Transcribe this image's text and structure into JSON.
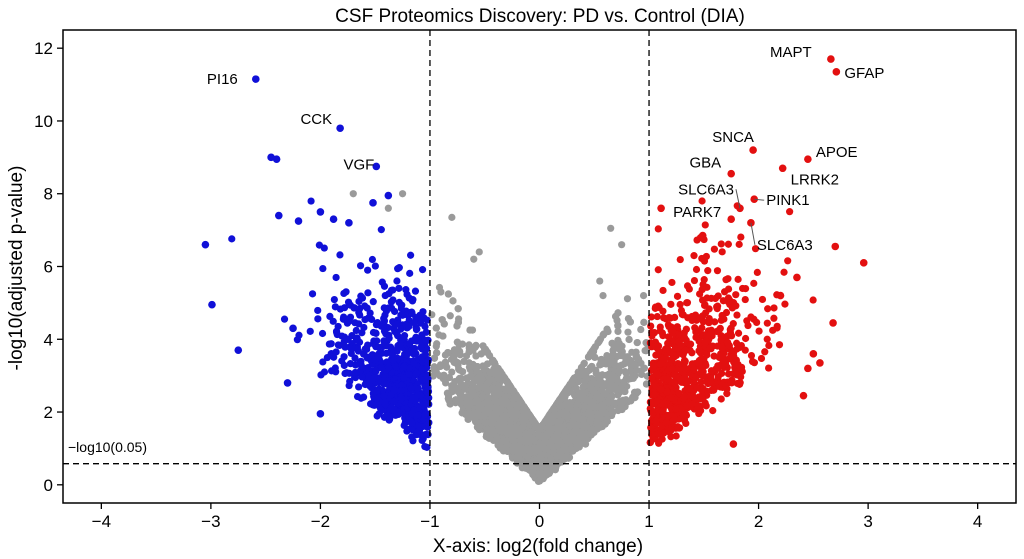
{
  "chart_data": {
    "type": "scatter",
    "title": "CSF Proteomics Discovery: PD vs. Control (DIA)",
    "xlabel": "X-axis: log2(fold change)",
    "ylabel": "-log10(adjusted p-value)",
    "xlim": [
      -4.35,
      4.35
    ],
    "ylim": [
      -0.5,
      12.5
    ],
    "xticks": [
      -4,
      -3,
      -2,
      -1,
      0,
      1,
      2,
      3,
      4
    ],
    "yticks": [
      0,
      2,
      4,
      6,
      8,
      10,
      12
    ],
    "fc_threshold": 1,
    "p_threshold_y": 0.58,
    "threshold_label": "−log10(0.05)",
    "grid": false,
    "colors": {
      "down": "#1010d8",
      "up": "#e31010",
      "ns": "#9a9a9a"
    },
    "labeled_points": [
      {
        "label": "MAPT",
        "x": 2.66,
        "y": 11.7
      },
      {
        "label": "GFAP",
        "x": 2.71,
        "y": 11.35
      },
      {
        "label": "APOE",
        "x": 2.45,
        "y": 8.95
      },
      {
        "label": "SNCA",
        "x": 1.95,
        "y": 9.2
      },
      {
        "label": "LRRK2",
        "x": 2.22,
        "y": 8.7
      },
      {
        "label": "GBA",
        "x": 1.75,
        "y": 8.55
      },
      {
        "label": "SLC6A3",
        "x": 1.83,
        "y": 7.6
      },
      {
        "label": "PINK1",
        "x": 1.96,
        "y": 7.85
      },
      {
        "label": "PARK7",
        "x": 1.75,
        "y": 7.3
      },
      {
        "label": "SLC6A3",
        "x": 1.93,
        "y": 7.2
      },
      {
        "label": "PI16",
        "x": -2.59,
        "y": 11.15
      },
      {
        "label": "CCK",
        "x": -1.82,
        "y": 9.8
      },
      {
        "label": "VGF",
        "x": -1.49,
        "y": 8.75
      }
    ],
    "highlight_points": [
      {
        "group": "down",
        "x": -3.05,
        "y": 6.6
      },
      {
        "group": "down",
        "x": -2.99,
        "y": 4.95
      },
      {
        "group": "down",
        "x": -2.75,
        "y": 3.7
      },
      {
        "group": "down",
        "x": -2.4,
        "y": 8.95
      },
      {
        "group": "down",
        "x": -2.45,
        "y": 9.0
      },
      {
        "group": "down",
        "x": -2.38,
        "y": 7.4
      },
      {
        "group": "down",
        "x": -2.2,
        "y": 7.25
      },
      {
        "group": "down",
        "x": -2.0,
        "y": 7.5
      },
      {
        "group": "down",
        "x": -1.88,
        "y": 7.3
      },
      {
        "group": "down",
        "x": -1.74,
        "y": 7.2
      },
      {
        "group": "down",
        "x": -1.52,
        "y": 7.75
      },
      {
        "group": "down",
        "x": -1.38,
        "y": 7.95
      },
      {
        "group": "down",
        "x": -2.3,
        "y": 2.8
      },
      {
        "group": "down",
        "x": -2.0,
        "y": 1.95
      },
      {
        "group": "down",
        "x": -1.9,
        "y": 3.6
      },
      {
        "group": "down",
        "x": -2.25,
        "y": 4.3
      },
      {
        "group": "up",
        "x": 1.11,
        "y": 7.6
      },
      {
        "group": "up",
        "x": 2.96,
        "y": 6.1
      },
      {
        "group": "up",
        "x": 2.7,
        "y": 6.55
      },
      {
        "group": "up",
        "x": 2.68,
        "y": 4.45
      },
      {
        "group": "up",
        "x": 2.56,
        "y": 3.35
      },
      {
        "group": "up",
        "x": 2.5,
        "y": 3.6
      },
      {
        "group": "up",
        "x": 2.45,
        "y": 3.2
      },
      {
        "group": "up",
        "x": 2.41,
        "y": 2.45
      },
      {
        "group": "up",
        "x": 1.49,
        "y": 6.85
      },
      {
        "group": "up",
        "x": 1.77,
        "y": 1.12
      },
      {
        "group": "up",
        "x": 2.2,
        "y": 5.2
      },
      {
        "group": "up",
        "x": 2.35,
        "y": 5.7
      }
    ],
    "distribution": {
      "ns_count": 3400,
      "down_count": 720,
      "up_count": 740
    }
  }
}
